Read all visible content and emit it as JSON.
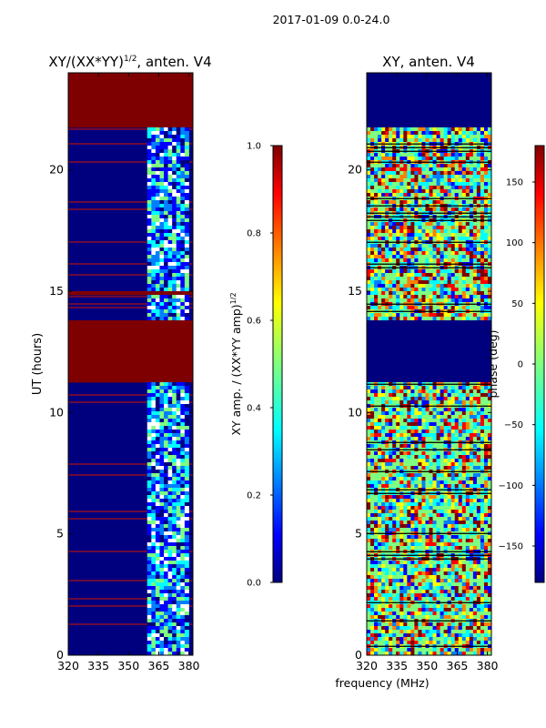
{
  "figure": {
    "suptitle": "2017-01-09 0.0-24.0",
    "colors": {
      "jet": [
        "#00007f",
        "#0000ff",
        "#007fff",
        "#00ffff",
        "#7fff7f",
        "#ffff00",
        "#ff7f00",
        "#ff0000",
        "#7f0000"
      ],
      "background": "#ffffff",
      "axis": "#000000"
    }
  },
  "chart_data": [
    {
      "type": "heatmap",
      "title_main": "XY/(XX*YY)",
      "title_sup": "1/2",
      "title_tail": ", anten. V4",
      "xlabel": "",
      "ylabel": "UT (hours)",
      "xlim": [
        320,
        382
      ],
      "ylim": [
        0,
        24
      ],
      "xticks": [
        320,
        335,
        350,
        365,
        380
      ],
      "yticks": [
        0,
        5,
        10,
        15,
        20
      ],
      "colorbar": {
        "label_main": "XY amp. / (XX*YY amp)",
        "label_sup": "1/2",
        "range": [
          0.0,
          1.0
        ],
        "ticks": [
          "0.0",
          "0.2",
          "0.4",
          "0.6",
          "0.8",
          "1.0"
        ],
        "tick_values": [
          0.0,
          0.2,
          0.4,
          0.6,
          0.8,
          1.0
        ]
      },
      "dark_red_bands_hours": [
        [
          0.0,
          0.05
        ],
        [
          11.2,
          13.8
        ],
        [
          14.9,
          15.0
        ],
        [
          21.8,
          24.0
        ]
      ],
      "active_freq_range_mhz": [
        359,
        380
      ]
    },
    {
      "type": "heatmap",
      "title_main": "XY, anten. V4",
      "xlabel": "frequency (MHz)",
      "ylabel": "",
      "xlim": [
        320,
        382
      ],
      "ylim": [
        0,
        24
      ],
      "xticks": [
        320,
        335,
        350,
        365,
        380
      ],
      "yticks": [
        0,
        5,
        10,
        15,
        20
      ],
      "colorbar": {
        "label_main": "phase (deg)",
        "range": [
          -180,
          180
        ],
        "ticks": [
          "150",
          "100",
          "50",
          "0",
          "−50",
          "−100",
          "−150"
        ],
        "tick_values": [
          150,
          100,
          50,
          0,
          -50,
          -100,
          -150
        ]
      },
      "dark_blue_bands_hours": [
        [
          11.2,
          13.8
        ],
        [
          21.8,
          24.0
        ]
      ]
    }
  ]
}
